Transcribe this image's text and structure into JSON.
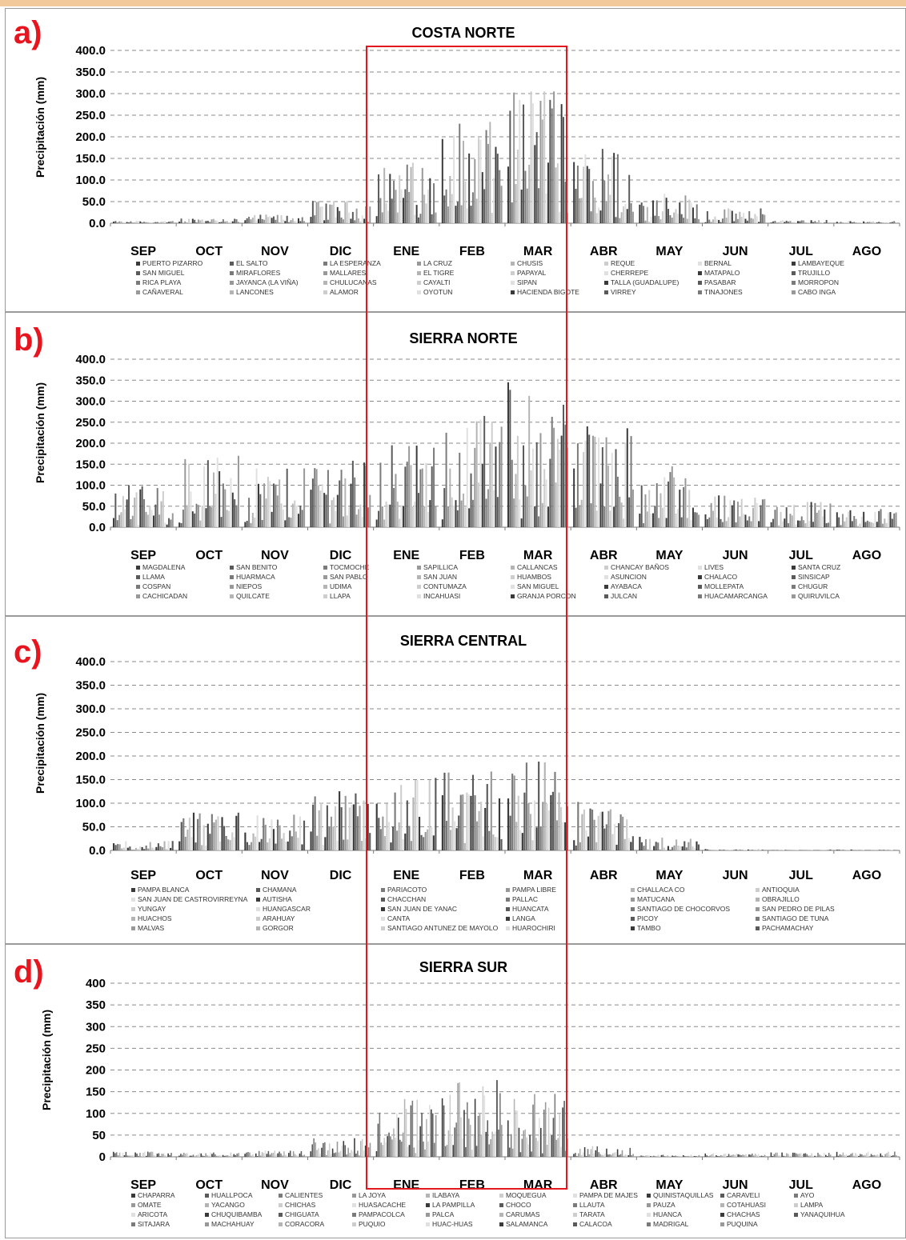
{
  "chart_data": [
    {
      "type": "bar",
      "panel_label": "a)",
      "title": "COSTA NORTE",
      "ylabel": "Precipitación (mm)",
      "ylim": [
        0,
        400
      ],
      "yticks": [
        "0.0",
        "50.0",
        "100.0",
        "150.0",
        "200.0",
        "250.0",
        "300.0",
        "350.0",
        "400.0"
      ],
      "categories": [
        "SEP",
        "OCT",
        "NOV",
        "DIC",
        "ENE",
        "FEB",
        "MAR",
        "ABR",
        "MAY",
        "JUN",
        "JUL",
        "AGO"
      ],
      "month_max": [
        5,
        12,
        20,
        52,
        140,
        235,
        305,
        172,
        68,
        35,
        8,
        5
      ],
      "legend": [
        "PUERTO PIZARRO",
        "EL SALTO",
        "LA ESPERANZA",
        "LA CRUZ",
        "CHUSIS",
        "REQUE",
        "BERNAL",
        "LAMBAYEQUE",
        "SAN MIGUEL",
        "MIRAFLORES",
        "MALLARES",
        "EL TIGRE",
        "PAPAYAL",
        "CHERREPE",
        "MATAPALO",
        "TRUJILLO",
        "RICA PLAYA",
        "JAYANCA (LA VIÑA)",
        "CHULUCANAS",
        "CAYALTI",
        "SIPAN",
        "TALLA (GUADALUPE)",
        "PASABAR",
        "MORROPON",
        "CAÑAVERAL",
        "LANCONES",
        "ALAMOR",
        "OYOTUN",
        "HACIENDA BIGOTE",
        "VIRREY",
        "TINAJONES",
        "CABO INGA"
      ]
    },
    {
      "type": "bar",
      "panel_label": "b)",
      "title": "SIERRA NORTE",
      "ylabel": "Precipitación (mm)",
      "ylim": [
        0,
        400
      ],
      "yticks": [
        "0.0",
        "50.0",
        "100.0",
        "150.0",
        "200.0",
        "250.0",
        "300.0",
        "350.0",
        "400.0"
      ],
      "categories": [
        "SEP",
        "OCT",
        "NOV",
        "DIC",
        "ENE",
        "FEB",
        "MAR",
        "ABR",
        "MAY",
        "JUN",
        "JUL",
        "AGO"
      ],
      "month_max": [
        100,
        170,
        140,
        165,
        195,
        265,
        345,
        240,
        145,
        85,
        60,
        45
      ],
      "legend": [
        "MAGDALENA",
        "SAN BENITO",
        "TOCMOCHE",
        "SAPILLICA",
        "CALLANCAS",
        "CHANCAY BAÑOS",
        "LIVES",
        "SANTA CRUZ",
        "LLAMA",
        "HUARMACA",
        "SAN PABLO",
        "SAN JUAN",
        "HUAMBOS",
        "ASUNCION",
        "CHALACO",
        "SINSICAP",
        "COSPAN",
        "NIEPOS",
        "UDIMA",
        "CONTUMAZA",
        "SAN MIGUEL",
        "AYABACA",
        "MOLLEPATA",
        "CHUGUR",
        "CACHICADAN",
        "QUILCATE",
        "LLAPA",
        "INCAHUASI",
        "GRANJA PORCON",
        "JULCAN",
        "HUACAMARCANGA",
        "QUIRUVILCA"
      ]
    },
    {
      "type": "bar",
      "panel_label": "c)",
      "title": "SIERRA CENTRAL",
      "ylabel": "Precipitación (mm)",
      "ylim": [
        0,
        400
      ],
      "yticks": [
        "0.0",
        "50.0",
        "100.0",
        "150.0",
        "200.0",
        "250.0",
        "300.0",
        "350.0",
        "400.0"
      ],
      "categories": [
        "SEP",
        "OCT",
        "NOV",
        "DIC",
        "ENE",
        "FEB",
        "MAR",
        "ABR",
        "MAY",
        "JUN",
        "JUL",
        "AGO"
      ],
      "month_max": [
        20,
        80,
        78,
        130,
        155,
        170,
        210,
        105,
        30,
        3,
        2,
        2
      ],
      "legend": [
        "PAMPA BLANCA",
        "CHAMANA",
        "PARIACOTO",
        "PAMPA LIBRE",
        "CHALLACA CO",
        "ANTIOQUIA",
        "SAN JUAN DE CASTROVIRREYNA",
        "AUTISHA",
        "CHACCHAN",
        "PALLAC",
        "MATUCANA",
        "OBRAJILLO",
        "YUNGAY",
        "HUANGASCAR",
        "SAN JUAN DE YANAC",
        "HUANCATA",
        "SANTIAGO DE CHOCORVOS",
        "SAN PEDRO DE PILAS",
        "HUACHOS",
        "ARAHUAY",
        "CANTA",
        "LANGA",
        "PICOY",
        "SANTIAGO DE TUNA",
        "MALVAS",
        "GORGOR",
        "SANTIAGO ANTUNEZ DE MAYOLO",
        "HUAROCHIRI",
        "TAMBO",
        "PACHAMACHAY"
      ]
    },
    {
      "type": "bar",
      "panel_label": "d)",
      "title": "SIERRA SUR",
      "ylabel": "Precipitación (mm)",
      "ylim": [
        0,
        400
      ],
      "yticks": [
        "0",
        "50",
        "100",
        "150",
        "200",
        "250",
        "300",
        "350",
        "400"
      ],
      "categories": [
        "SEP",
        "OCT",
        "NOV",
        "DIC",
        "ENE",
        "FEB",
        "MAR",
        "ABR",
        "MAY",
        "JUN",
        "JUL",
        "AGO"
      ],
      "month_max": [
        12,
        10,
        15,
        45,
        135,
        178,
        145,
        25,
        5,
        8,
        10,
        12
      ],
      "legend": [
        "CHAPARRA",
        "HUALLPOCA",
        "CALIENTES",
        "LA JOYA",
        "ILABAYA",
        "MOQUEGUA",
        "PAMPA DE MAJES",
        "QUINISTAQUILLAS",
        "CARAVELI",
        "AYO",
        "OMATE",
        "YACANGO",
        "CHICHAS",
        "HUASACACHE",
        "LA PAMPILLA",
        "CHOCO",
        "LLAUTA",
        "PAUZA",
        "COTAHUASI",
        "LAMPA",
        "ARICOTA",
        "CHUQUIBAMBA",
        "CHIGUATA",
        "PAMPACOLCA",
        "PALCA",
        "CARUMAS",
        "TARATA",
        "HUANCA",
        "CHACHAS",
        "YANAQUIHUA",
        "SITAJARA",
        "MACHAHUAY",
        "CORACORA",
        "PUQUIO",
        "HUAC-HUAS",
        "SALAMANCA",
        "CALACOA",
        "MADRIGAL",
        "PUQUINA"
      ]
    }
  ]
}
